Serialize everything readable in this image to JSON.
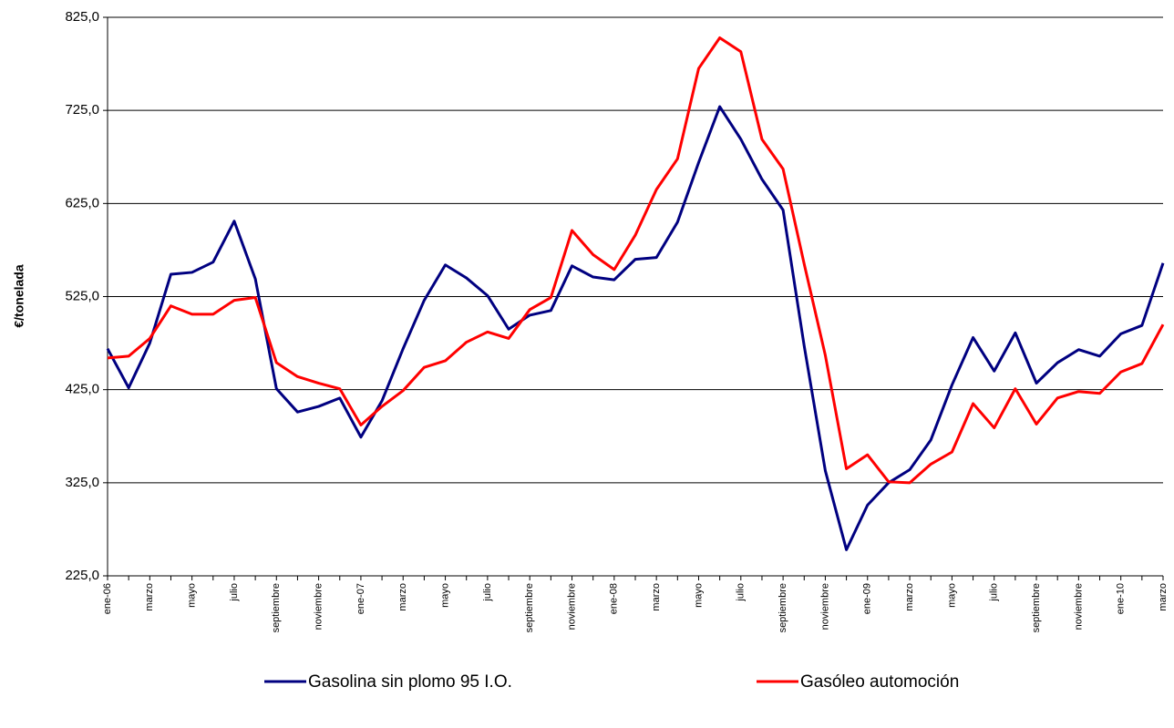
{
  "chart_data": {
    "type": "line",
    "ylabel": "€/tonelada",
    "categories": [
      "ene-06",
      null,
      "marzo",
      null,
      "mayo",
      null,
      "julio",
      null,
      "septiembre",
      null,
      "noviembre",
      null,
      "ene-07",
      null,
      "marzo",
      null,
      "mayo",
      null,
      "julio",
      null,
      "septiembre",
      null,
      "noviembre",
      null,
      "ene-08",
      null,
      "marzo",
      null,
      "mayo",
      null,
      "julio",
      null,
      "septiembre",
      null,
      "noviembre",
      null,
      "ene-09",
      null,
      "marzo",
      null,
      "mayo",
      null,
      "julio",
      null,
      "septiembre",
      null,
      "noviembre",
      null,
      "ene-10",
      null,
      "marzo"
    ],
    "series": [
      {
        "name": "Gasolina sin plomo 95 I.O.",
        "color": "#000080",
        "values": [
          469,
          427,
          475,
          549,
          551,
          562,
          606,
          544,
          426,
          401,
          407,
          416,
          374,
          413,
          469,
          521,
          559,
          545,
          526,
          490,
          505,
          510,
          558,
          546,
          543,
          565,
          567,
          605,
          669,
          729,
          694,
          651,
          618,
          472,
          338,
          253,
          301,
          325,
          339,
          371,
          430,
          481,
          445,
          486,
          432,
          454,
          468,
          461,
          485,
          494,
          561
        ]
      },
      {
        "name": "Gasóleo automoción",
        "color": "#ff0000",
        "values": [
          459,
          461,
          480,
          515,
          506,
          506,
          521,
          524,
          454,
          439,
          432,
          426,
          387,
          407,
          424,
          449,
          456,
          476,
          487,
          480,
          511,
          524,
          596,
          570,
          554,
          591,
          640,
          673,
          770,
          803,
          788,
          694,
          662,
          560,
          462,
          340,
          355,
          326,
          325,
          345,
          358,
          410,
          384,
          426,
          388,
          416,
          423,
          421,
          444,
          453,
          495
        ]
      }
    ],
    "ylim": [
      225,
      825
    ],
    "yticks": [
      {
        "value": 225,
        "label": "225,0"
      },
      {
        "value": 325,
        "label": "325,0"
      },
      {
        "value": 425,
        "label": "425,0"
      },
      {
        "value": 525,
        "label": "525,0"
      },
      {
        "value": 625,
        "label": "625,0"
      },
      {
        "value": 725,
        "label": "725,0"
      },
      {
        "value": 825,
        "label": "825,0"
      }
    ],
    "grid": true,
    "legend": "bottom"
  }
}
